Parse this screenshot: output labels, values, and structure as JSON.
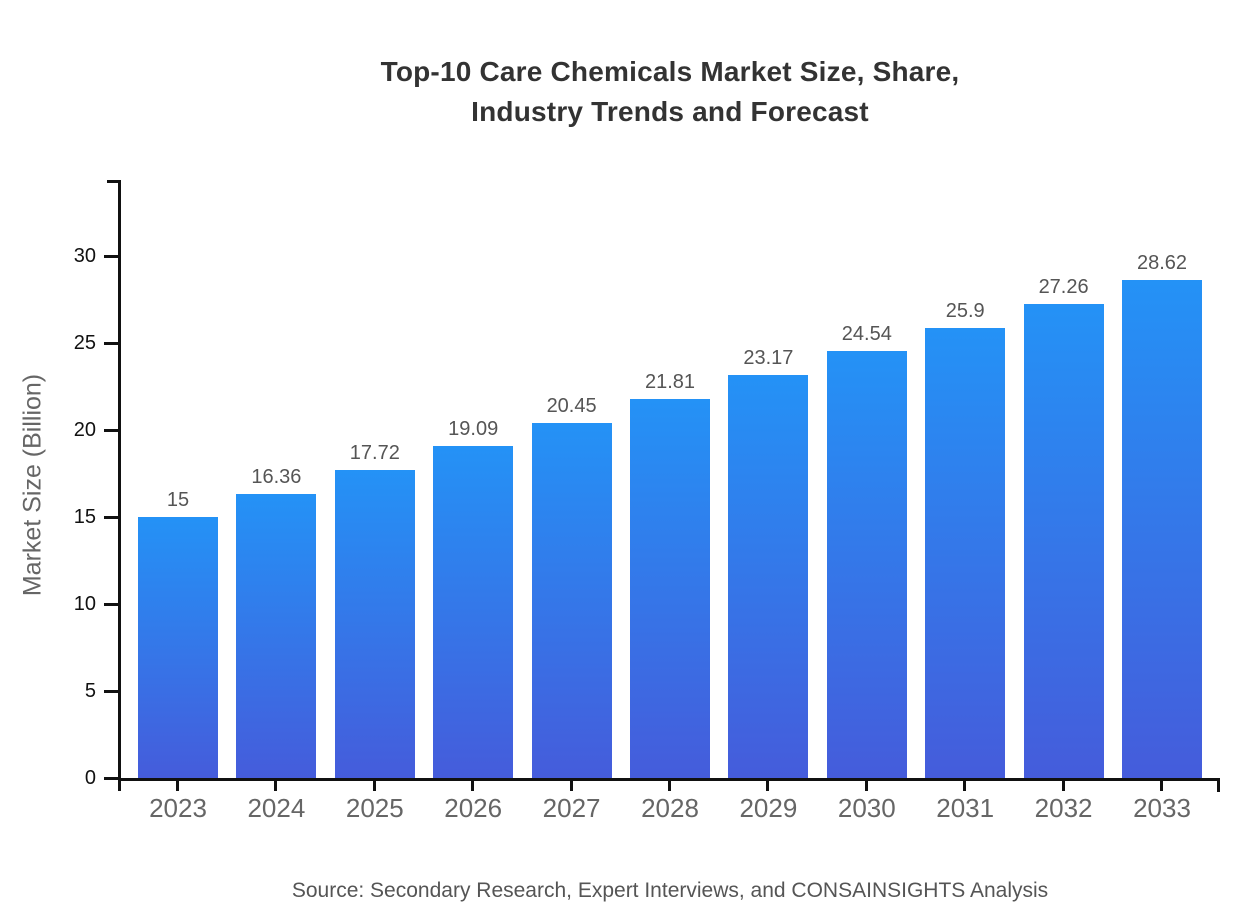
{
  "header": {
    "title_line1": "Top-10 Care Chemicals Market Size, Share,",
    "title_line2": "Industry Trends and Forecast"
  },
  "footer": {
    "source": "Source: Secondary Research, Expert Interviews, and CONSAINSIGHTS Analysis"
  },
  "colors": {
    "bar_gradient_top": "#2492F6",
    "bar_gradient_bottom": "#455CDB",
    "axis": "#111111",
    "ytick_label": "#111111",
    "xtick_label": "#666666",
    "value_label": "#555555",
    "title": "#333333",
    "source": "#555555"
  },
  "chart_data": {
    "type": "bar",
    "title": "Top-10 Care Chemicals Market Size, Share, Industry Trends and Forecast",
    "categories": [
      "2023",
      "2024",
      "2025",
      "2026",
      "2027",
      "2028",
      "2029",
      "2030",
      "2031",
      "2032",
      "2033"
    ],
    "values": [
      15,
      16.36,
      17.72,
      19.09,
      20.45,
      21.81,
      23.17,
      24.54,
      25.9,
      27.26,
      28.62
    ],
    "xlabel": "",
    "ylabel": "Market Size (Billion)",
    "ylim": [
      0,
      34.4
    ],
    "yticks": [
      0,
      5,
      10,
      15,
      20,
      25,
      30
    ],
    "grid": false,
    "legend": "none",
    "bar_color_top": "#2492F6",
    "bar_color_bottom": "#455CDB"
  }
}
